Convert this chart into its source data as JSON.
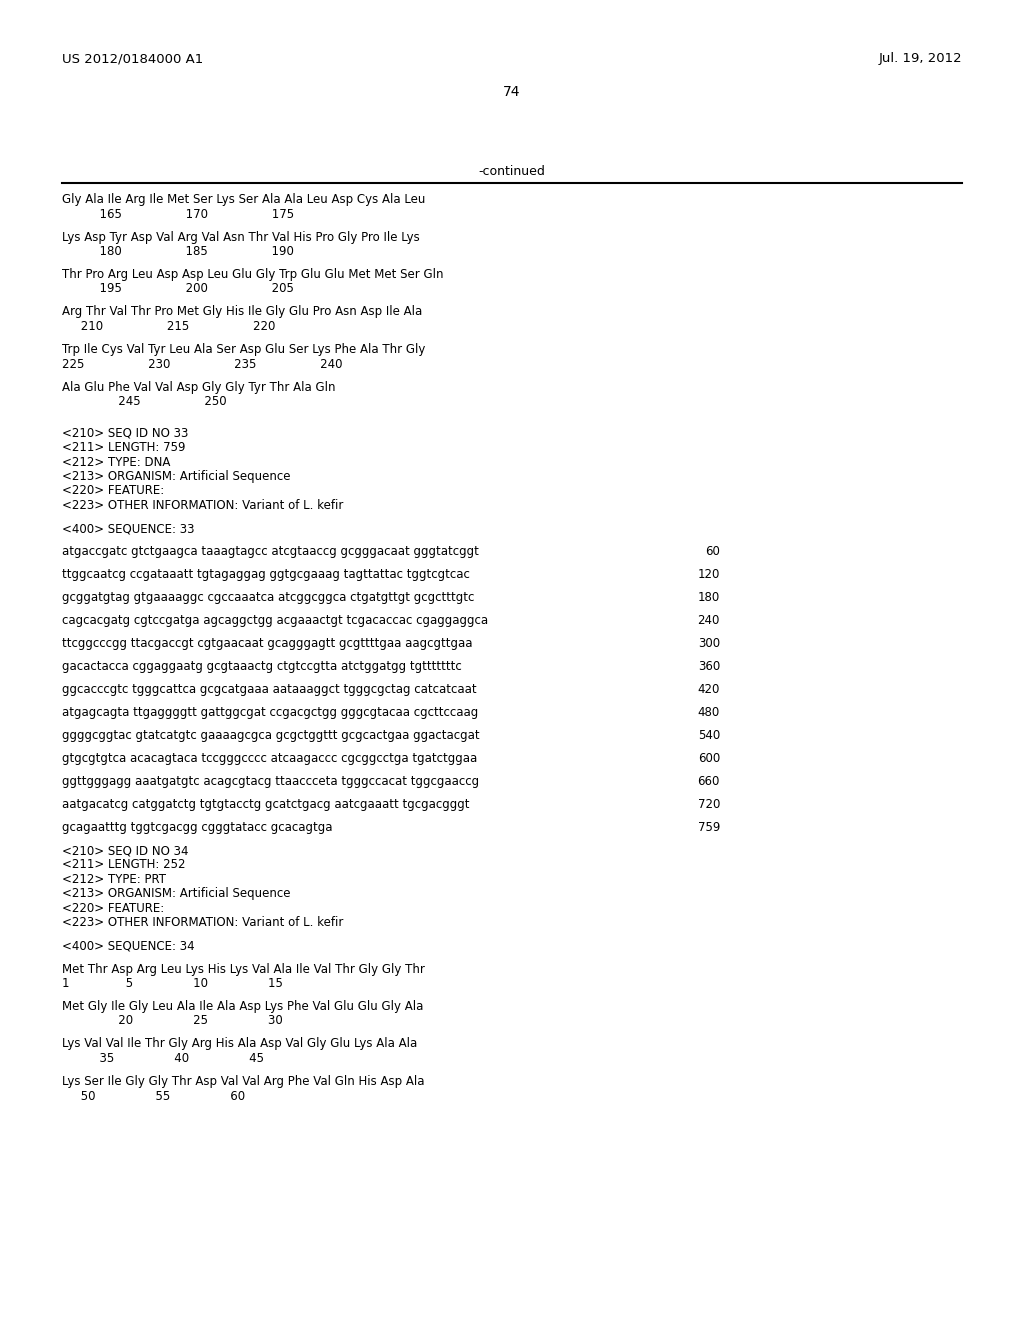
{
  "header_left": "US 2012/0184000 A1",
  "header_right": "Jul. 19, 2012",
  "page_number": "74",
  "continued_label": "-continued",
  "background_color": "#ffffff",
  "text_color": "#000000",
  "font_size": 8.5,
  "mono_font": "Courier New",
  "content_lines": [
    {
      "type": "seq_line",
      "text": "Gly Ala Ile Arg Ile Met Ser Lys Ser Ala Ala Leu Asp Cys Ala Leu"
    },
    {
      "type": "num_line",
      "text": "          165                 170                 175"
    },
    {
      "type": "blank"
    },
    {
      "type": "seq_line",
      "text": "Lys Asp Tyr Asp Val Arg Val Asn Thr Val His Pro Gly Pro Ile Lys"
    },
    {
      "type": "num_line",
      "text": "          180                 185                 190"
    },
    {
      "type": "blank"
    },
    {
      "type": "seq_line",
      "text": "Thr Pro Arg Leu Asp Asp Leu Glu Gly Trp Glu Glu Met Met Ser Gln"
    },
    {
      "type": "num_line",
      "text": "          195                 200                 205"
    },
    {
      "type": "blank"
    },
    {
      "type": "seq_line",
      "text": "Arg Thr Val Thr Pro Met Gly His Ile Gly Glu Pro Asn Asp Ile Ala"
    },
    {
      "type": "num_line",
      "text": "     210                 215                 220"
    },
    {
      "type": "blank"
    },
    {
      "type": "seq_line",
      "text": "Trp Ile Cys Val Tyr Leu Ala Ser Asp Glu Ser Lys Phe Ala Thr Gly"
    },
    {
      "type": "num_line",
      "text": "225                 230                 235                 240"
    },
    {
      "type": "blank"
    },
    {
      "type": "seq_line",
      "text": "Ala Glu Phe Val Val Asp Gly Gly Tyr Thr Ala Gln"
    },
    {
      "type": "num_line",
      "text": "               245                 250"
    },
    {
      "type": "blank"
    },
    {
      "type": "blank"
    },
    {
      "type": "meta",
      "text": "<210> SEQ ID NO 33"
    },
    {
      "type": "meta",
      "text": "<211> LENGTH: 759"
    },
    {
      "type": "meta",
      "text": "<212> TYPE: DNA"
    },
    {
      "type": "meta",
      "text": "<213> ORGANISM: Artificial Sequence"
    },
    {
      "type": "meta",
      "text": "<220> FEATURE:"
    },
    {
      "type": "meta",
      "text": "<223> OTHER INFORMATION: Variant of L. kefir"
    },
    {
      "type": "blank"
    },
    {
      "type": "meta",
      "text": "<400> SEQUENCE: 33"
    },
    {
      "type": "blank"
    },
    {
      "type": "dna_line",
      "text": "atgaccgatc gtctgaagca taaagtagcc atcgtaaccg gcgggacaat gggtatcggt",
      "num": "60"
    },
    {
      "type": "blank"
    },
    {
      "type": "dna_line",
      "text": "ttggcaatcg ccgataaatt tgtagaggag ggtgcgaaag tagttattac tggtcgtcac",
      "num": "120"
    },
    {
      "type": "blank"
    },
    {
      "type": "dna_line",
      "text": "gcggatgtag gtgaaaaggc cgccaaatca atcggcggca ctgatgttgt gcgctttgtc",
      "num": "180"
    },
    {
      "type": "blank"
    },
    {
      "type": "dna_line",
      "text": "cagcacgatg cgtccgatga agcaggctgg acgaaactgt tcgacaccac cgaggaggca",
      "num": "240"
    },
    {
      "type": "blank"
    },
    {
      "type": "dna_line",
      "text": "ttcggcccgg ttacgaccgt cgtgaacaat gcagggagtt gcgttttgaa aagcgttgaa",
      "num": "300"
    },
    {
      "type": "blank"
    },
    {
      "type": "dna_line",
      "text": "gacactacca cggaggaatg gcgtaaactg ctgtccgtta atctggatgg tgtttttttc",
      "num": "360"
    },
    {
      "type": "blank"
    },
    {
      "type": "dna_line",
      "text": "ggcacccgtc tgggcattca gcgcatgaaa aataaaggct tgggcgctag catcatcaat",
      "num": "420"
    },
    {
      "type": "blank"
    },
    {
      "type": "dna_line",
      "text": "atgagcagta ttgaggggtt gattggcgat ccgacgctgg gggcgtacaa cgcttccaag",
      "num": "480"
    },
    {
      "type": "blank"
    },
    {
      "type": "dna_line",
      "text": "ggggcggtac gtatcatgtc gaaaagcgca gcgctggttt gcgcactgaa ggactacgat",
      "num": "540"
    },
    {
      "type": "blank"
    },
    {
      "type": "dna_line",
      "text": "gtgcgtgtca acacagtaca tccgggcccc atcaagaccc cgcggcctga tgatctggaa",
      "num": "600"
    },
    {
      "type": "blank"
    },
    {
      "type": "dna_line",
      "text": "ggttgggagg aaatgatgtc acagcgtacg ttaaccceta tgggccacat tggcgaaccg",
      "num": "660"
    },
    {
      "type": "blank"
    },
    {
      "type": "dna_line",
      "text": "aatgacatcg catggatctg tgtgtacctg gcatctgacg aatcgaaatt tgcgacgggt",
      "num": "720"
    },
    {
      "type": "blank"
    },
    {
      "type": "dna_line",
      "text": "gcagaatttg tggtcgacgg cgggtatacc gcacagtga",
      "num": "759"
    },
    {
      "type": "blank"
    },
    {
      "type": "meta",
      "text": "<210> SEQ ID NO 34"
    },
    {
      "type": "meta",
      "text": "<211> LENGTH: 252"
    },
    {
      "type": "meta",
      "text": "<212> TYPE: PRT"
    },
    {
      "type": "meta",
      "text": "<213> ORGANISM: Artificial Sequence"
    },
    {
      "type": "meta",
      "text": "<220> FEATURE:"
    },
    {
      "type": "meta",
      "text": "<223> OTHER INFORMATION: Variant of L. kefir"
    },
    {
      "type": "blank"
    },
    {
      "type": "meta",
      "text": "<400> SEQUENCE: 34"
    },
    {
      "type": "blank"
    },
    {
      "type": "seq_line",
      "text": "Met Thr Asp Arg Leu Lys His Lys Val Ala Ile Val Thr Gly Gly Thr"
    },
    {
      "type": "num_line",
      "text": "1               5                10                15"
    },
    {
      "type": "blank"
    },
    {
      "type": "seq_line",
      "text": "Met Gly Ile Gly Leu Ala Ile Ala Asp Lys Phe Val Glu Glu Gly Ala"
    },
    {
      "type": "num_line",
      "text": "               20                25                30"
    },
    {
      "type": "blank"
    },
    {
      "type": "seq_line",
      "text": "Lys Val Val Ile Thr Gly Arg His Ala Asp Val Gly Glu Lys Ala Ala"
    },
    {
      "type": "num_line",
      "text": "          35                40                45"
    },
    {
      "type": "blank"
    },
    {
      "type": "seq_line",
      "text": "Lys Ser Ile Gly Gly Thr Asp Val Val Arg Phe Val Gln His Asp Ala"
    },
    {
      "type": "num_line",
      "text": "     50                55                60"
    }
  ]
}
